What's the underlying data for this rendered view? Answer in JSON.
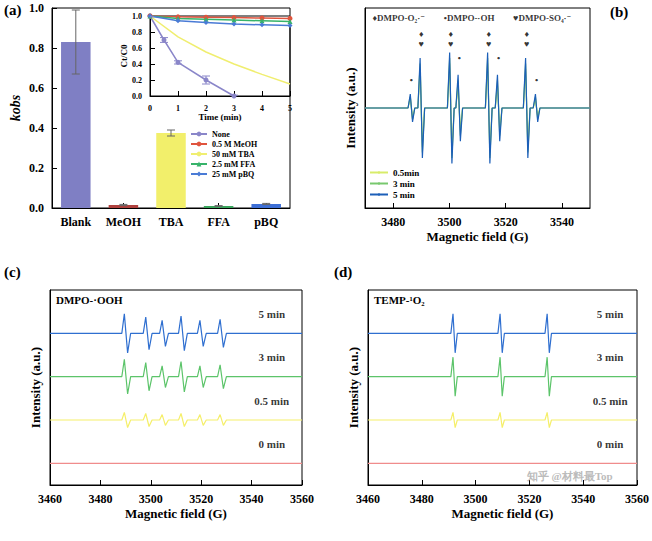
{
  "chart_data": [
    {
      "type": "bar",
      "title": "(a)",
      "ylabel": "kobs",
      "categories": [
        "Blank",
        "MeOH",
        "TBA",
        "FFA",
        "pBQ"
      ],
      "values": [
        0.83,
        0.015,
        0.375,
        0.01,
        0.02
      ],
      "errors": [
        0.16,
        0.003,
        0.015,
        0.002,
        0.003
      ],
      "colors": [
        "#7f7fc4",
        "#b0413e",
        "#f2ef6b",
        "#3aa55d",
        "#3d6fd6"
      ],
      "ylim": [
        0,
        1
      ],
      "yticks": [
        {
          "value": 0,
          "label": "0.0"
        },
        {
          "value": 0.2,
          "label": "0.2"
        },
        {
          "value": 0.4,
          "label": "0.4"
        },
        {
          "value": 0.6,
          "label": "0.6"
        },
        {
          "value": 0.8,
          "label": "0.8"
        },
        {
          "value": 1,
          "label": "1.0"
        }
      ],
      "grid": false
    },
    {
      "type": "line",
      "xlabel": "Time (min)",
      "ylabel": "Ct/C0",
      "xlim": [
        0,
        5
      ],
      "xticks": [
        0,
        1,
        2,
        3,
        4,
        5
      ],
      "ylim": [
        0,
        1
      ],
      "yticks": [
        {
          "value": 0,
          "label": "0.0"
        },
        {
          "value": 0.2,
          "label": "0.2"
        },
        {
          "value": 0.4,
          "label": "0.4"
        },
        {
          "value": 0.6,
          "label": "0.6"
        },
        {
          "value": 0.8,
          "label": "0.8"
        },
        {
          "value": 1,
          "label": "1.0"
        }
      ],
      "series": [
        {
          "name": "None",
          "color": "#8a86c9",
          "marker": "circle",
          "x": [
            0,
            0.5,
            1,
            2,
            3
          ],
          "values": [
            1.0,
            0.7,
            0.42,
            0.2,
            0.0
          ],
          "errors": [
            0.01,
            0.03,
            0.02,
            0.05,
            0.01
          ]
        },
        {
          "name": "0.5 M MeOH",
          "color": "#e0543e",
          "marker": "circle",
          "x": [
            0,
            1,
            2,
            3,
            4,
            5
          ],
          "values": [
            1.0,
            0.99,
            0.985,
            0.98,
            0.975,
            0.97
          ]
        },
        {
          "name": "50 mM TBA",
          "color": "#f0ee70",
          "marker": "none",
          "x": [
            0,
            1,
            2,
            3,
            4,
            5
          ],
          "values": [
            1.0,
            0.74,
            0.55,
            0.4,
            0.27,
            0.15
          ]
        },
        {
          "name": "2.5 mM FFA",
          "color": "#37b36a",
          "marker": "triangle",
          "x": [
            0,
            1,
            2,
            3,
            4,
            5
          ],
          "values": [
            1.0,
            0.97,
            0.96,
            0.95,
            0.94,
            0.93
          ]
        },
        {
          "name": "25 mM pBQ",
          "color": "#4a7bd6",
          "marker": "diamond",
          "x": [
            0,
            1,
            2,
            3,
            4,
            5
          ],
          "values": [
            1.0,
            0.94,
            0.92,
            0.9,
            0.89,
            0.88
          ]
        }
      ],
      "legend": "below",
      "grid": false
    },
    {
      "type": "line",
      "title": "(b)",
      "xlabel": "Magnetic field (G)",
      "ylabel": "Intensity (a.u.)",
      "x": [
        3470,
        3485.3,
        3486.1,
        3486.9,
        3487.7,
        3488.8,
        3489.6,
        3490.4,
        3491.2,
        3499.3,
        3500.1,
        3500.9,
        3501.7,
        3502.3,
        3503.1,
        3503.9,
        3504.7,
        3512.8,
        3513.6,
        3514.4,
        3515.2,
        3516.3,
        3517.1,
        3517.9,
        3518.7,
        3526.3,
        3527.1,
        3527.9,
        3528.7,
        3529.8,
        3530.6,
        3531.4,
        3532.2,
        3550
      ],
      "series": [
        {
          "name": "0.5min",
          "color": "#d8ec6a",
          "values": [
            0,
            0,
            0.2,
            -0.2,
            0,
            0,
            0.7,
            -0.7,
            0,
            0,
            0.8,
            -0.8,
            0,
            0,
            0.4,
            -0.4,
            0,
            0,
            0.8,
            -0.8,
            0,
            0,
            0.4,
            -0.4,
            0,
            0,
            0.7,
            -0.7,
            0,
            0,
            0.15,
            -0.15,
            0,
            0
          ]
        },
        {
          "name": "3 min",
          "color": "#78c86e",
          "values": [
            0,
            0,
            0.2,
            -0.2,
            0,
            0,
            0.8,
            -0.8,
            0,
            0,
            0.9,
            -0.9,
            0,
            0,
            0.5,
            -0.5,
            0,
            0,
            0.9,
            -0.9,
            0,
            0,
            0.5,
            -0.5,
            0,
            0,
            0.8,
            -0.8,
            0,
            0,
            0.2,
            -0.2,
            0,
            0
          ]
        },
        {
          "name": "5 min",
          "color": "#1c5fb8",
          "values": [
            0,
            0,
            0.25,
            -0.25,
            0,
            0,
            0.9,
            -0.9,
            0,
            0,
            1.0,
            -1.0,
            0,
            0,
            0.6,
            -0.6,
            0,
            0,
            1.0,
            -1.0,
            0,
            0,
            0.6,
            -0.6,
            0,
            0,
            0.9,
            -0.9,
            0,
            0,
            0.25,
            -0.25,
            0,
            0
          ]
        }
      ],
      "xlim": [
        3470,
        3550
      ],
      "xticks": [
        3480,
        3500,
        3520,
        3540
      ],
      "ylim": [
        -1.8,
        1.8
      ],
      "tick_labels": "x",
      "annotations": [
        {
          "text": "♦DMPO-O₂·⁻",
          "x": 3482,
          "y": 1.62
        },
        {
          "text": "•DMPO-·OH",
          "x": 3507,
          "y": 1.62
        },
        {
          "text": "♥DMPO-SO₄·⁻",
          "x": 3533,
          "y": 1.62
        },
        {
          "text": "♦\n♥",
          "x": 3490,
          "y": 1.25
        },
        {
          "text": "♦\n♥",
          "x": 3500.5,
          "y": 1.25
        },
        {
          "text": "♦\n♥",
          "x": 3514,
          "y": 1.25
        },
        {
          "text": "♦\n♥",
          "x": 3527.5,
          "y": 1.25
        },
        {
          "text": "•",
          "x": 3486.5,
          "y": 0.5
        },
        {
          "text": "•",
          "x": 3503.5,
          "y": 0.9
        },
        {
          "text": "•",
          "x": 3517.5,
          "y": 0.9
        },
        {
          "text": "•",
          "x": 3531,
          "y": 0.5
        }
      ],
      "legend": "lower left",
      "grid": false
    },
    {
      "type": "line",
      "title": "(c)",
      "subtitle": "DMPO-·OOH",
      "xlabel": "Magnetic field (G)",
      "ylabel": "Intensity (a.u.)",
      "x": [
        3460,
        3488.5,
        3489.5,
        3490.8,
        3492,
        3497,
        3498,
        3499.3,
        3500.5,
        3503.5,
        3504.5,
        3505.8,
        3507,
        3511,
        3512,
        3513.3,
        3514.5,
        3518.5,
        3519.5,
        3520.8,
        3522,
        3526.5,
        3527.5,
        3528.8,
        3530,
        3560
      ],
      "series": [
        {
          "name": "0 min",
          "color": "#f08c8c",
          "values": [
            0,
            0,
            0,
            0,
            0,
            0,
            0,
            0,
            0,
            0,
            0,
            0,
            0,
            0,
            0,
            0,
            0,
            0,
            0,
            0,
            0,
            0,
            0,
            0,
            0,
            0
          ]
        },
        {
          "name": "0.5 min",
          "color": "#f5ef6a",
          "values": [
            2,
            2,
            2.35,
            1.65,
            2,
            2,
            2.3,
            1.7,
            2,
            2,
            2.25,
            1.75,
            2,
            2,
            2.3,
            1.7,
            2,
            2,
            2.25,
            1.75,
            2,
            2,
            2.25,
            1.75,
            2,
            2
          ]
        },
        {
          "name": "3 min",
          "color": "#5cc46a",
          "values": [
            4,
            4,
            4.8,
            3.2,
            4,
            4,
            4.65,
            3.35,
            4,
            4,
            4.5,
            3.5,
            4,
            4,
            4.7,
            3.3,
            4,
            4,
            4.5,
            3.5,
            4,
            4,
            4.55,
            3.45,
            4,
            4
          ]
        },
        {
          "name": "5 min",
          "color": "#2f6fd0",
          "values": [
            6,
            6,
            6.9,
            5.1,
            6,
            6,
            6.75,
            5.25,
            6,
            6,
            6.6,
            5.4,
            6,
            6,
            6.8,
            5.2,
            6,
            6,
            6.6,
            5.4,
            6,
            6,
            6.65,
            5.35,
            6,
            6
          ]
        }
      ],
      "xlim": [
        3460,
        3560
      ],
      "xticks": [
        3460,
        3480,
        3500,
        3520,
        3540,
        3560
      ],
      "ylim": [
        -1,
        8
      ],
      "tick_labels": "x",
      "annotations": [
        {
          "text": "5 min",
          "x": 3548,
          "y": 6.9
        },
        {
          "text": "3 min",
          "x": 3548,
          "y": 4.9
        },
        {
          "text": "0.5 min",
          "x": 3548,
          "y": 2.9
        },
        {
          "text": "0 min",
          "x": 3548,
          "y": 0.9
        }
      ],
      "grid": false
    },
    {
      "type": "line",
      "title": "(d)",
      "subtitle": "TEMP-¹O₂",
      "xlabel": "Magnetic field (G)",
      "ylabel": "Intensity (a.u.)",
      "x": [
        3460,
        3490.8,
        3491.6,
        3492.4,
        3493.2,
        3508.3,
        3509.1,
        3509.9,
        3510.7,
        3525.8,
        3526.6,
        3527.4,
        3528.2,
        3560
      ],
      "series": [
        {
          "name": "0 min",
          "color": "#f08c8c",
          "values": [
            0,
            0,
            0,
            0,
            0,
            0,
            0,
            0,
            0,
            0,
            0,
            0,
            0,
            0
          ]
        },
        {
          "name": "0.5 min",
          "color": "#f5ef6a",
          "values": [
            2,
            2,
            2.35,
            1.65,
            2,
            2,
            2.35,
            1.65,
            2,
            2,
            2.35,
            1.65,
            2,
            2
          ]
        },
        {
          "name": "3 min",
          "color": "#5cc46a",
          "values": [
            4,
            4,
            4.9,
            3.1,
            4,
            4,
            4.9,
            3.1,
            4,
            4,
            4.9,
            3.1,
            4,
            4
          ]
        },
        {
          "name": "5 min",
          "color": "#2f6fd0",
          "values": [
            6,
            6,
            6.9,
            5.1,
            6,
            6,
            6.9,
            5.1,
            6,
            6,
            6.9,
            5.1,
            6,
            6
          ]
        }
      ],
      "xlim": [
        3460,
        3560
      ],
      "xticks": [
        3460,
        3480,
        3500,
        3520,
        3540,
        3560
      ],
      "ylim": [
        -1,
        8
      ],
      "tick_labels": "x",
      "annotations": [
        {
          "text": "5 min",
          "x": 3550,
          "y": 6.9
        },
        {
          "text": "3 min",
          "x": 3550,
          "y": 4.9
        },
        {
          "text": "0.5 min",
          "x": 3550,
          "y": 2.9
        },
        {
          "text": "0 min",
          "x": 3550,
          "y": 0.9
        },
        {
          "text": "知乎 @材料最Top",
          "x": 3535,
          "y": -0.6,
          "color": "#aaaaaa"
        }
      ],
      "grid": false
    }
  ]
}
